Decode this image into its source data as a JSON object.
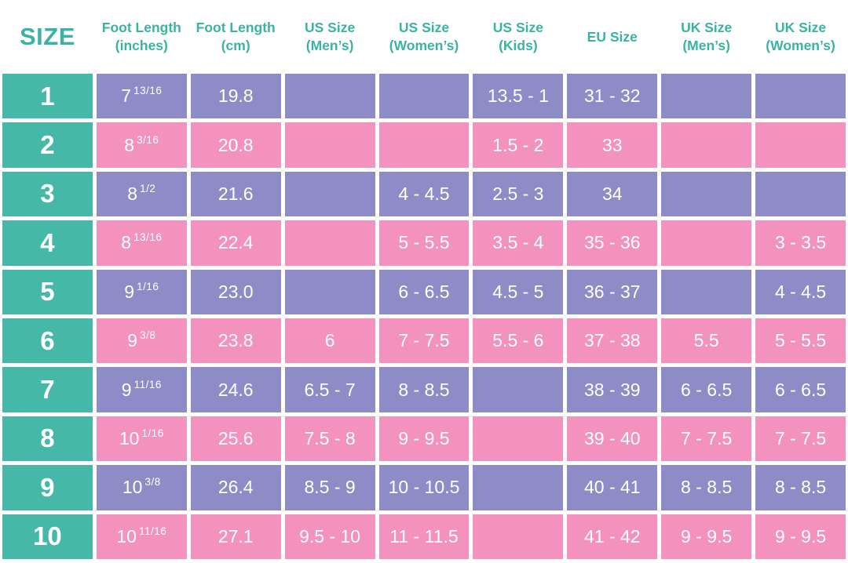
{
  "palette": {
    "teal": "#45B8A8",
    "header_text": "#3BB3A3",
    "purple": "#8E8CC6",
    "pink": "#F392BF",
    "cell_text": "#FFFFFF",
    "background": "#FFFFFF"
  },
  "header": {
    "size_label": "SIZE",
    "columns": [
      {
        "line1": "Foot Length",
        "line2": "(inches)"
      },
      {
        "line1": "Foot Length",
        "line2": "(cm)"
      },
      {
        "line1": "US Size",
        "line2": "(Men’s)"
      },
      {
        "line1": "US Size",
        "line2": "(Women’s)"
      },
      {
        "line1": "US Size",
        "line2": "(Kids)"
      },
      {
        "line1": "EU Size",
        "line2": ""
      },
      {
        "line1": "UK Size",
        "line2": "(Men’s)"
      },
      {
        "line1": "UK Size",
        "line2": "(Women’s)"
      }
    ]
  },
  "column_keys": [
    "size",
    "foot-length-inches",
    "foot-length-cm",
    "us-size-mens",
    "us-size-womens",
    "us-size-kids",
    "eu-size",
    "uk-size-mens",
    "uk-size-womens"
  ],
  "chart_data": {
    "type": "table",
    "columns": [
      "SIZE",
      "Foot Length (inches)",
      "Foot Length (cm)",
      "US Size (Men’s)",
      "US Size (Women’s)",
      "US Size (Kids)",
      "EU Size",
      "UK Size (Men’s)",
      "UK Size (Women’s)"
    ],
    "rows": [
      [
        "1",
        "7 13/16",
        "19.8",
        "",
        "",
        "13.5 - 1",
        "31 - 32",
        "",
        ""
      ],
      [
        "2",
        "8 3/16",
        "20.8",
        "",
        "",
        "1.5 - 2",
        "33",
        "",
        ""
      ],
      [
        "3",
        "8 1/2",
        "21.6",
        "",
        "4 - 4.5",
        "2.5 - 3",
        "34",
        "",
        ""
      ],
      [
        "4",
        "8 13/16",
        "22.4",
        "",
        "5 - 5.5",
        "3.5 - 4",
        "35 - 36",
        "",
        "3 - 3.5"
      ],
      [
        "5",
        "9 1/16",
        "23.0",
        "",
        "6 - 6.5",
        "4.5 - 5",
        "36 - 37",
        "",
        "4 - 4.5"
      ],
      [
        "6",
        "9 3/8",
        "23.8",
        "6",
        "7 - 7.5",
        "5.5 - 6",
        "37 - 38",
        "5.5",
        "5 - 5.5"
      ],
      [
        "7",
        "9 11/16",
        "24.6",
        "6.5 - 7",
        "8 - 8.5",
        "",
        "38 - 39",
        "6 - 6.5",
        "6 - 6.5"
      ],
      [
        "8",
        "10 1/16",
        "25.6",
        "7.5 - 8",
        "9 - 9.5",
        "",
        "39 - 40",
        "7 - 7.5",
        "7 - 7.5"
      ],
      [
        "9",
        "10 3/8",
        "26.4",
        "8.5 - 9",
        "10 - 10.5",
        "",
        "40 - 41",
        "8 - 8.5",
        "8 - 8.5"
      ],
      [
        "10",
        "10 11/16",
        "27.1",
        "9.5 - 10",
        "11 - 11.5",
        "",
        "41 - 42",
        "9 - 9.5",
        "9 - 9.5"
      ]
    ]
  }
}
